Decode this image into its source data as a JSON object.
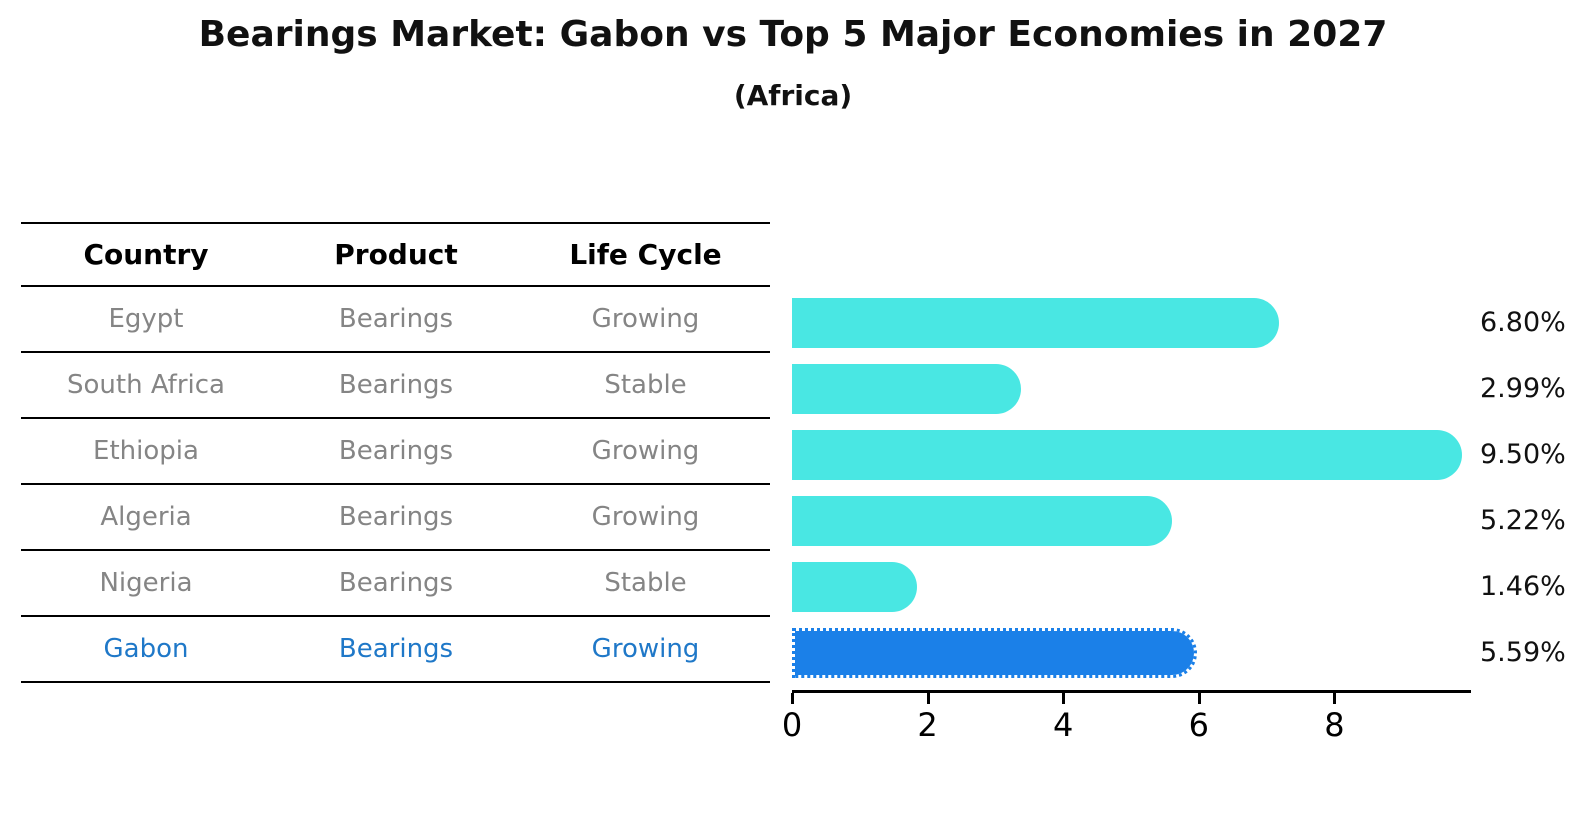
{
  "title": "Bearings Market: Gabon vs Top 5 Major Economies in 2027",
  "subtitle": "(Africa)",
  "table": {
    "headers": [
      "Country",
      "Product",
      "Life Cycle"
    ],
    "rows": [
      {
        "country": "Egypt",
        "product": "Bearings",
        "life_cycle": "Growing"
      },
      {
        "country": "South Africa",
        "product": "Bearings",
        "life_cycle": "Stable"
      },
      {
        "country": "Ethiopia",
        "product": "Bearings",
        "life_cycle": "Growing"
      },
      {
        "country": "Algeria",
        "product": "Bearings",
        "life_cycle": "Growing"
      },
      {
        "country": "Nigeria",
        "product": "Bearings",
        "life_cycle": "Stable"
      },
      {
        "country": "Gabon",
        "product": "Bearings",
        "life_cycle": "Growing"
      }
    ],
    "highlight_row": 5
  },
  "chart_data": {
    "type": "bar",
    "orientation": "horizontal",
    "title": "Bearings Market: Gabon vs Top 5 Major Economies in 2027",
    "subtitle": "(Africa)",
    "categories": [
      "Egypt",
      "South Africa",
      "Ethiopia",
      "Algeria",
      "Nigeria",
      "Gabon"
    ],
    "values": [
      6.8,
      2.99,
      9.5,
      5.22,
      1.46,
      5.59
    ],
    "value_labels": [
      "6.80%",
      "2.99%",
      "9.50%",
      "5.22%",
      "1.46%",
      "5.59%"
    ],
    "x_ticks": [
      0,
      2,
      4,
      6,
      8
    ],
    "xlim": [
      0,
      10
    ],
    "grid": false,
    "legend": false,
    "highlight_index": 5,
    "bar_color": "#49E7E3",
    "highlight_bar_color": "#1B80E8"
  },
  "colors": {
    "text": "#111111",
    "muted_text": "#858585",
    "highlight_text": "#1F78C8",
    "background": "#FFFFFF"
  }
}
